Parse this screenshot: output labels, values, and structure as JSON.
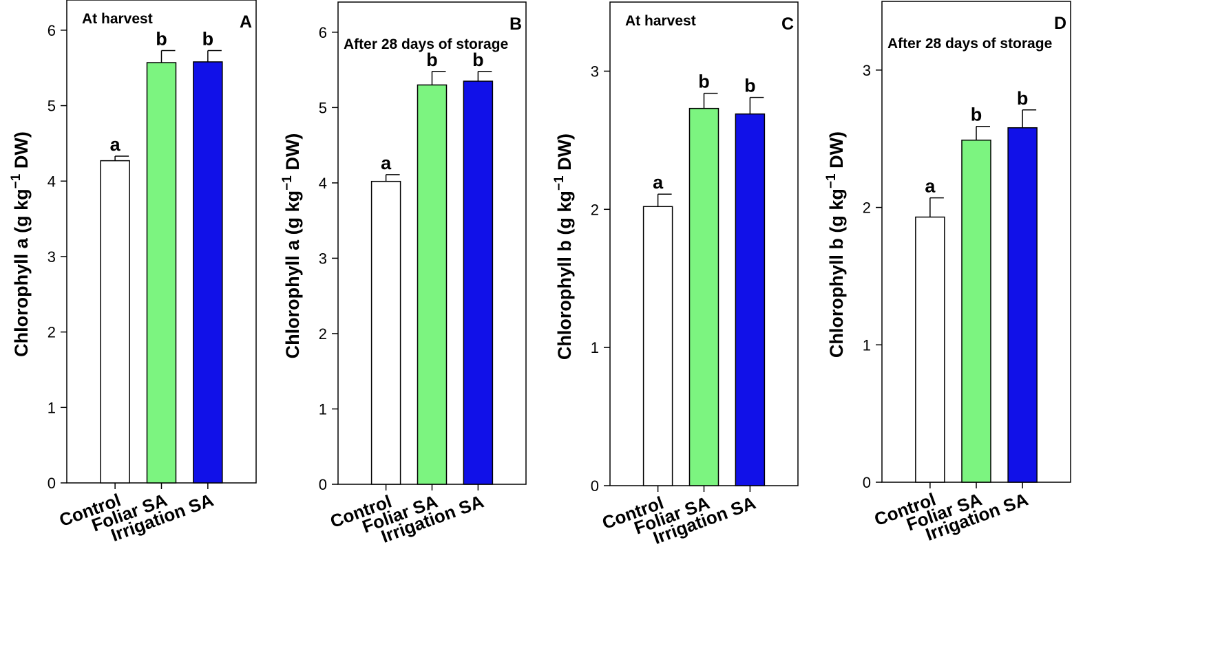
{
  "figure": "Chlorophyll content panels",
  "chart_data": [
    {
      "type": "bar",
      "panel": "A",
      "title": "At harvest",
      "ylabel": "Chlorophyll a (g kg",
      "ylabel_sup": "−1",
      "ylabel_suffix": " DW)",
      "ylim": [
        0,
        6.4
      ],
      "yticks": [
        0,
        1,
        2,
        3,
        4,
        5,
        6
      ],
      "categories": [
        "Control",
        "Foliar SA",
        "Irrigation SA"
      ],
      "values": [
        4.27,
        5.57,
        5.58
      ],
      "errors": [
        0.06,
        0.16,
        0.15
      ],
      "significance": [
        "a",
        "b",
        "b"
      ],
      "colors": [
        "#ffffff",
        "#7cf480",
        "#1111e8"
      ]
    },
    {
      "type": "bar",
      "panel": "B",
      "title": "After 28 days of storage",
      "ylabel": "Chlorophyll a (g kg",
      "ylabel_sup": "−1",
      "ylabel_suffix": " DW)",
      "ylim": [
        0,
        6.4
      ],
      "yticks": [
        0,
        1,
        2,
        3,
        4,
        5,
        6
      ],
      "categories": [
        "Control",
        "Foliar SA",
        "Irrigation SA"
      ],
      "values": [
        4.02,
        5.3,
        5.35
      ],
      "errors": [
        0.09,
        0.18,
        0.13
      ],
      "significance": [
        "a",
        "b",
        "b"
      ],
      "colors": [
        "#ffffff",
        "#7cf480",
        "#1111e8"
      ]
    },
    {
      "type": "bar",
      "panel": "C",
      "title": "At harvest",
      "ylabel": "Chlorophyll b (g kg",
      "ylabel_sup": "−1",
      "ylabel_suffix": " DW)",
      "ylim": [
        0,
        3.5
      ],
      "yticks": [
        0,
        1,
        2,
        3
      ],
      "categories": [
        "Control",
        "Foliar SA",
        "Irrigation SA"
      ],
      "values": [
        2.02,
        2.73,
        2.69
      ],
      "errors": [
        0.09,
        0.11,
        0.12
      ],
      "significance": [
        "a",
        "b",
        "b"
      ],
      "colors": [
        "#ffffff",
        "#7cf480",
        "#1111e8"
      ]
    },
    {
      "type": "bar",
      "panel": "D",
      "title": "After 28 days of storage",
      "ylabel": "Chlorophyll b (g kg",
      "ylabel_sup": "−1",
      "ylabel_suffix": " DW)",
      "ylim": [
        0,
        3.5
      ],
      "yticks": [
        0,
        1,
        2,
        3
      ],
      "categories": [
        "Control",
        "Foliar SA",
        "Irrigation SA"
      ],
      "values": [
        1.93,
        2.49,
        2.58
      ],
      "errors": [
        0.14,
        0.1,
        0.13
      ],
      "significance": [
        "a",
        "b",
        "b"
      ],
      "colors": [
        "#ffffff",
        "#7cf480",
        "#1111e8"
      ]
    }
  ]
}
